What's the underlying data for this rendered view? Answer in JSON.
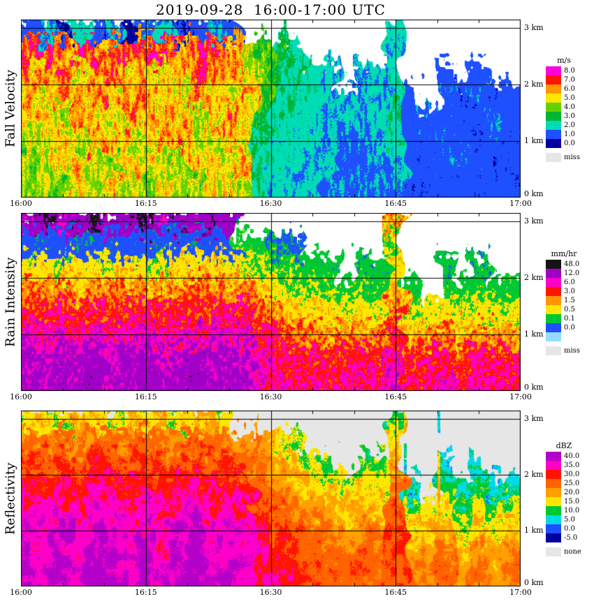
{
  "title": "2019-09-28  16:00-17:00 UTC",
  "chart_data": [
    {
      "type": "heatmap",
      "panel_label": "Fall Velocity",
      "unit": "m/s",
      "x_ticks": [
        "16:00",
        "16:15",
        "16:30",
        "16:45",
        "17:00"
      ],
      "y_ticks": [
        {
          "label": "0 km",
          "km": 0
        },
        {
          "label": "1 km",
          "km": 1
        },
        {
          "label": "2 km",
          "km": 2
        },
        {
          "label": "3 km",
          "km": 3
        }
      ],
      "x_range_minutes": [
        0,
        60
      ],
      "y_range_km": [
        0,
        3.15
      ],
      "background": "#FFFFFF",
      "thresholds": [
        8,
        7,
        6,
        5,
        4,
        3,
        2,
        1,
        0
      ],
      "legend": [
        {
          "label": "8.0",
          "color": "#FF00DC"
        },
        {
          "label": "7.0",
          "color": "#FF1400"
        },
        {
          "label": "6.0",
          "color": "#FF9600"
        },
        {
          "label": "5.0",
          "color": "#FFE600"
        },
        {
          "label": "4.0",
          "color": "#64D200"
        },
        {
          "label": "3.0",
          "color": "#00B432"
        },
        {
          "label": "2.0",
          "color": "#00DCB4"
        },
        {
          "label": "1.0",
          "color": "#1E50FF"
        },
        {
          "label": "0.0",
          "color": "#0000A0"
        },
        {
          "label": "miss",
          "color": "#E6E6E6",
          "gap": true
        }
      ],
      "grid": {
        "time_start": "16:00",
        "time_step_min": 2,
        "row_heights_km": [
          3.0,
          2.6,
          2.2,
          1.8,
          1.4,
          1.0,
          0.6,
          0.2
        ],
        "values": [
          [
            1.5,
            2,
            1,
            2.5,
            1.2,
            2,
            0.8,
            1.8,
            2.2,
            1,
            1.5,
            2,
            1.5,
            null,
            null,
            null,
            null,
            null,
            null,
            null,
            null,
            null,
            2.5,
            null,
            null,
            null,
            null,
            null,
            null,
            null
          ],
          [
            7,
            7.5,
            6.5,
            8,
            7,
            6.5,
            7.5,
            7,
            8,
            6.5,
            7,
            7.5,
            6.5,
            5,
            4,
            3,
            2.5,
            null,
            null,
            null,
            null,
            null,
            2.2,
            null,
            null,
            null,
            null,
            null,
            null,
            null
          ],
          [
            6.5,
            6,
            7,
            5.5,
            6.5,
            7,
            6,
            6.5,
            5.5,
            6,
            7,
            6.5,
            6,
            5.5,
            4.5,
            3.5,
            3,
            2.5,
            2.2,
            null,
            2,
            2.2,
            2.5,
            null,
            null,
            1.5,
            null,
            1.5,
            null,
            null
          ],
          [
            6,
            5.5,
            6.5,
            6,
            7,
            5.5,
            6,
            6.5,
            6,
            5.5,
            6.5,
            6,
            5.5,
            6,
            4,
            3,
            2.8,
            2.5,
            2.2,
            2,
            2.2,
            2,
            2.8,
            1.5,
            null,
            1.8,
            1.2,
            1.8,
            1.2,
            1.5
          ],
          [
            5.5,
            6,
            5,
            6.5,
            6,
            5.5,
            6.5,
            6,
            5.5,
            6,
            5,
            6,
            6.5,
            5.5,
            3.5,
            2.8,
            2.5,
            2.2,
            2,
            2.2,
            2,
            2.2,
            2.8,
            1.5,
            1.8,
            1.5,
            1.2,
            1.5,
            1.8,
            1.5
          ],
          [
            5,
            5.5,
            6,
            5,
            6.5,
            6,
            5.5,
            5,
            6,
            6.5,
            5.5,
            5,
            6,
            5.5,
            3,
            2.5,
            2.2,
            2.5,
            2,
            1.8,
            2,
            2,
            2.5,
            1.5,
            1.5,
            1.8,
            1.5,
            1.2,
            1.5,
            1.2
          ],
          [
            4.5,
            5,
            5.5,
            6,
            5,
            4.5,
            6,
            5.5,
            5,
            4.5,
            6,
            5.5,
            5,
            6,
            2.8,
            2.5,
            2.2,
            2,
            2.2,
            1.8,
            1.8,
            2,
            2.2,
            1.5,
            1.2,
            1.5,
            1.8,
            1.5,
            1.2,
            1.5
          ],
          [
            4.5,
            5,
            4.5,
            5.5,
            5,
            6,
            5,
            4.5,
            5.5,
            5,
            4.5,
            5.5,
            6,
            5,
            2.8,
            2.2,
            2,
            2.2,
            1.8,
            2,
            1.8,
            1.8,
            2,
            1.2,
            1.5,
            1.2,
            1.5,
            1.2,
            1.5,
            1.2
          ]
        ]
      }
    },
    {
      "type": "heatmap",
      "panel_label": "Rain Intensity",
      "unit": "mm/hr",
      "x_ticks": [
        "16:00",
        "16:15",
        "16:30",
        "16:45",
        "17:00"
      ],
      "y_ticks": [
        {
          "label": "0 km",
          "km": 0
        },
        {
          "label": "1 km",
          "km": 1
        },
        {
          "label": "2 km",
          "km": 2
        },
        {
          "label": "3 km",
          "km": 3
        }
      ],
      "x_range_minutes": [
        0,
        60
      ],
      "y_range_km": [
        0,
        3.15
      ],
      "background": "#FFFFFF",
      "thresholds": [
        48,
        12,
        6,
        3,
        1.5,
        0.5,
        0.1,
        0.02,
        0
      ],
      "legend": [
        {
          "label": "48.0",
          "color": "#141414"
        },
        {
          "label": "12.0",
          "color": "#A000C8"
        },
        {
          "label": "6.0",
          "color": "#FF00C8"
        },
        {
          "label": "3.0",
          "color": "#FF1400"
        },
        {
          "label": "1.5",
          "color": "#FF9600"
        },
        {
          "label": "0.5",
          "color": "#FFE600"
        },
        {
          "label": "0.1",
          "color": "#00C832"
        },
        {
          "label": "0.0",
          "color": "#1E50FF"
        },
        {
          "label": "",
          "color": "#96DCFF"
        },
        {
          "label": "miss",
          "color": "#E6E6E6",
          "gap": true
        }
      ],
      "grid": {
        "time_start": "16:00",
        "time_step_min": 2,
        "row_heights_km": [
          3.0,
          2.6,
          2.2,
          1.8,
          1.4,
          1.0,
          0.6,
          0.2
        ],
        "values": [
          [
            20,
            40,
            15,
            30,
            50,
            18,
            25,
            45,
            15,
            35,
            20,
            30,
            25,
            null,
            null,
            null,
            null,
            null,
            null,
            null,
            null,
            null,
            2,
            null,
            null,
            null,
            null,
            null,
            null,
            null
          ],
          [
            0.05,
            0.06,
            0.04,
            0.07,
            0.05,
            0.06,
            0.05,
            0.04,
            0.06,
            0.05,
            0.07,
            0.05,
            0.06,
            0.3,
            0.2,
            0.1,
            0.08,
            null,
            null,
            null,
            null,
            null,
            0.5,
            null,
            null,
            null,
            null,
            null,
            null,
            null
          ],
          [
            0.8,
            1,
            0.6,
            1.2,
            0.9,
            0.7,
            1.1,
            0.8,
            0.6,
            1,
            0.9,
            1.2,
            0.8,
            0.7,
            0.5,
            0.4,
            0.3,
            0.2,
            0.2,
            null,
            0.15,
            0.2,
            1,
            null,
            null,
            0.15,
            null,
            0.15,
            null,
            null
          ],
          [
            2.5,
            2,
            3,
            1.8,
            2.2,
            2.8,
            2,
            2.5,
            1.8,
            2.2,
            3,
            2.5,
            2,
            2.2,
            1.2,
            0.8,
            0.6,
            0.5,
            0.4,
            0.3,
            0.4,
            0.3,
            1.5,
            0.2,
            null,
            0.3,
            0.2,
            0.3,
            0.2,
            0.25
          ],
          [
            5,
            4,
            6,
            4.5,
            5.5,
            4,
            5,
            6,
            4.5,
            5,
            4,
            5.5,
            6,
            5,
            3,
            2,
            1.5,
            1.2,
            1,
            0.8,
            1,
            0.8,
            3,
            0.6,
            0.8,
            1,
            0.6,
            0.8,
            0.6,
            0.8
          ],
          [
            9,
            8,
            10,
            7,
            11,
            8,
            9,
            10,
            7,
            9,
            8,
            11,
            10,
            9,
            5,
            4,
            3,
            2.5,
            2,
            2.5,
            2,
            2.5,
            5,
            1.5,
            2,
            3,
            1.5,
            2.5,
            2,
            2
          ],
          [
            15,
            12,
            18,
            14,
            20,
            12,
            16,
            18,
            12,
            15,
            20,
            14,
            16,
            15,
            8,
            6,
            5,
            6,
            4,
            5,
            6,
            5,
            8,
            4,
            5,
            7,
            4,
            6,
            5,
            5
          ],
          [
            18,
            15,
            20,
            16,
            25,
            14,
            18,
            20,
            15,
            18,
            22,
            16,
            18,
            16,
            9,
            7,
            6,
            7,
            5,
            6,
            7,
            6,
            9,
            5,
            6,
            8,
            5,
            7,
            6,
            6
          ]
        ]
      }
    },
    {
      "type": "heatmap",
      "panel_label": "Reflectivity",
      "unit": "dBZ",
      "x_ticks": [
        "16:00",
        "16:15",
        "16:30",
        "16:45",
        "17:00"
      ],
      "y_ticks": [
        {
          "label": "0 km",
          "km": 0
        },
        {
          "label": "1 km",
          "km": 1
        },
        {
          "label": "2 km",
          "km": 2
        },
        {
          "label": "3 km",
          "km": 3
        }
      ],
      "x_range_minutes": [
        0,
        60
      ],
      "y_range_km": [
        0,
        3.15
      ],
      "background": "#E6E6E6",
      "thresholds": [
        40,
        35,
        30,
        25,
        20,
        15,
        10,
        5,
        0,
        -5
      ],
      "legend": [
        {
          "label": "40.0",
          "color": "#B400C8"
        },
        {
          "label": "35.0",
          "color": "#FF00C8"
        },
        {
          "label": "30.0",
          "color": "#FF1400"
        },
        {
          "label": "25.0",
          "color": "#FF6400"
        },
        {
          "label": "20.0",
          "color": "#FFA000"
        },
        {
          "label": "15.0",
          "color": "#FFE600"
        },
        {
          "label": "10.0",
          "color": "#00C832"
        },
        {
          "label": "5.0",
          "color": "#00DCE6"
        },
        {
          "label": "0.0",
          "color": "#1E50FF"
        },
        {
          "label": "-5.0",
          "color": "#0000A0"
        },
        {
          "label": "none",
          "color": "#E6E6E6",
          "gap": true
        }
      ],
      "grid": {
        "time_start": "16:00",
        "time_step_min": 2,
        "row_heights_km": [
          3.0,
          2.6,
          2.2,
          1.8,
          1.4,
          1.0,
          0.6,
          0.2
        ],
        "values": [
          [
            18,
            20,
            16,
            22,
            19,
            17,
            21,
            18,
            20,
            16,
            19,
            21,
            17,
            null,
            null,
            null,
            null,
            null,
            null,
            null,
            null,
            null,
            12,
            null,
            null,
            null,
            null,
            null,
            null,
            null
          ],
          [
            26,
            25,
            27,
            24,
            28,
            26,
            25,
            27,
            24,
            26,
            28,
            25,
            26,
            24,
            22,
            18,
            15,
            null,
            null,
            null,
            null,
            null,
            18,
            null,
            null,
            null,
            null,
            null,
            null,
            null
          ],
          [
            30,
            29,
            31,
            28,
            32,
            30,
            29,
            31,
            28,
            30,
            32,
            29,
            30,
            28,
            26,
            22,
            20,
            16,
            14,
            null,
            12,
            14,
            22,
            null,
            null,
            8,
            null,
            8,
            null,
            null
          ],
          [
            34,
            33,
            35,
            32,
            36,
            34,
            33,
            35,
            32,
            34,
            36,
            33,
            34,
            32,
            28,
            24,
            22,
            20,
            18,
            16,
            18,
            16,
            26,
            8,
            null,
            12,
            8,
            12,
            8,
            10
          ],
          [
            37,
            36,
            38,
            35,
            39,
            37,
            36,
            38,
            35,
            37,
            39,
            36,
            37,
            35,
            30,
            28,
            25,
            24,
            22,
            20,
            22,
            20,
            28,
            14,
            16,
            18,
            12,
            16,
            14,
            16
          ],
          [
            39,
            38,
            41,
            37,
            42,
            39,
            38,
            41,
            37,
            39,
            42,
            38,
            39,
            37,
            33,
            31,
            28,
            27,
            25,
            24,
            26,
            24,
            30,
            18,
            20,
            22,
            16,
            20,
            18,
            20
          ],
          [
            40,
            39,
            42,
            38,
            43,
            40,
            39,
            42,
            38,
            40,
            43,
            39,
            40,
            38,
            35,
            33,
            30,
            29,
            27,
            26,
            28,
            26,
            30,
            22,
            24,
            26,
            20,
            24,
            22,
            24
          ],
          [
            41,
            40,
            42,
            39,
            43,
            41,
            40,
            42,
            39,
            41,
            43,
            40,
            41,
            39,
            36,
            34,
            31,
            30,
            28,
            27,
            29,
            27,
            30,
            24,
            26,
            28,
            22,
            26,
            24,
            26
          ]
        ]
      }
    }
  ]
}
